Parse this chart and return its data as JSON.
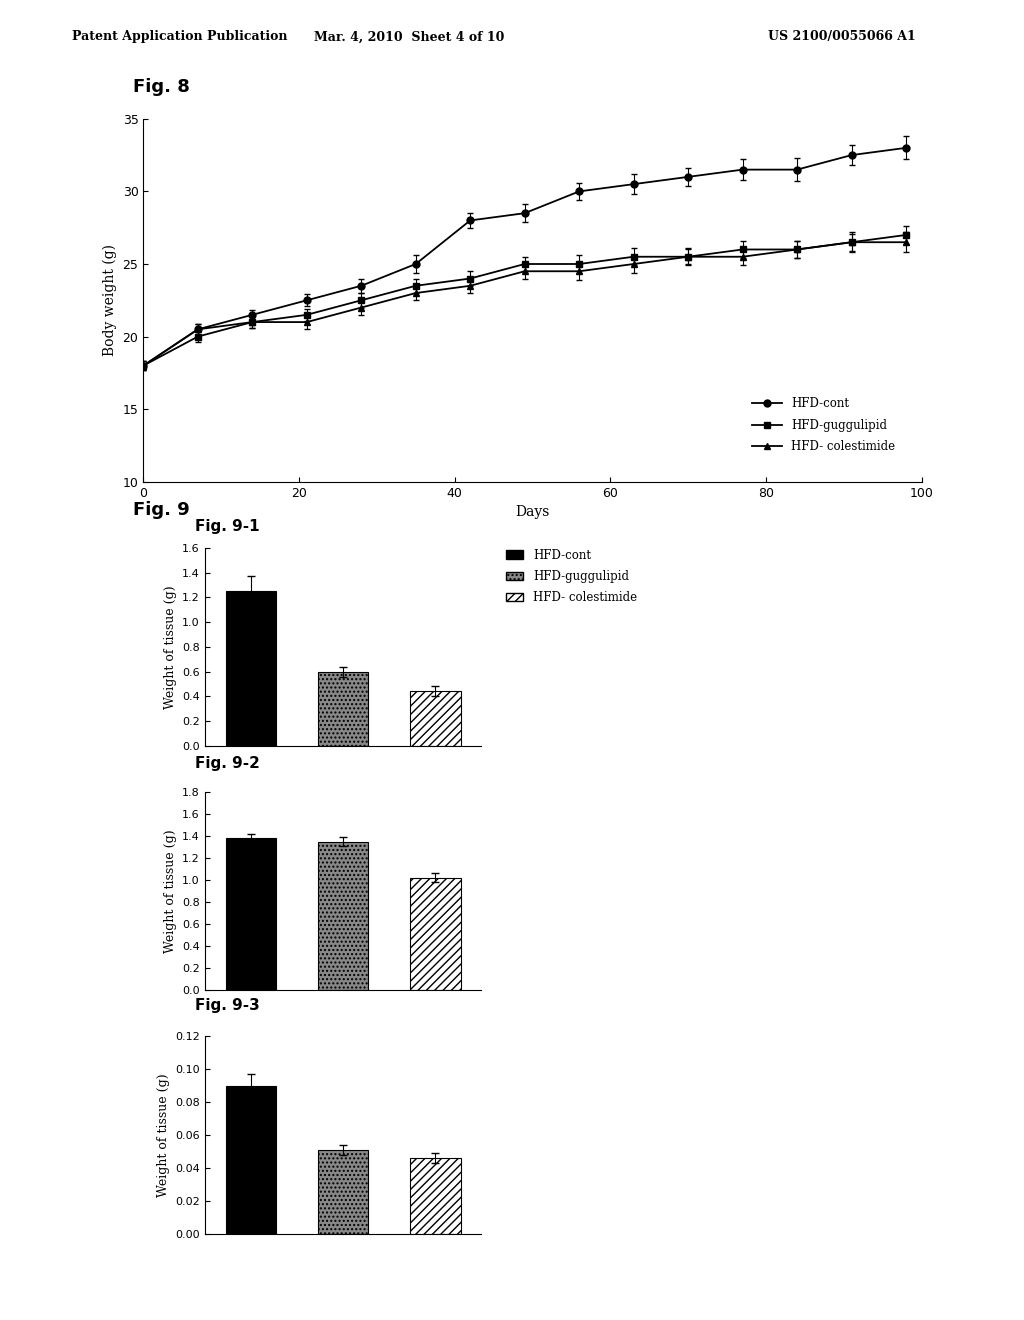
{
  "fig8": {
    "title": "Fig. 8",
    "xlabel": "Days",
    "ylabel": "Body weight (g)",
    "xlim": [
      0,
      100
    ],
    "ylim": [
      10,
      35
    ],
    "xticks": [
      0,
      20,
      40,
      60,
      80,
      100
    ],
    "yticks": [
      10,
      15,
      20,
      25,
      30,
      35
    ],
    "days": [
      0,
      7,
      14,
      21,
      28,
      35,
      42,
      49,
      56,
      63,
      70,
      77,
      84,
      91,
      98
    ],
    "hfd_cont": [
      18.0,
      20.5,
      21.5,
      22.5,
      23.5,
      25.0,
      28.0,
      28.5,
      30.0,
      30.5,
      31.0,
      31.5,
      31.5,
      32.5,
      33.0
    ],
    "hfd_cont_err": [
      0.3,
      0.4,
      0.3,
      0.4,
      0.5,
      0.6,
      0.5,
      0.6,
      0.6,
      0.7,
      0.6,
      0.7,
      0.8,
      0.7,
      0.8
    ],
    "hfd_gugg": [
      18.0,
      20.0,
      21.0,
      21.5,
      22.5,
      23.5,
      24.0,
      25.0,
      25.0,
      25.5,
      25.5,
      26.0,
      26.0,
      26.5,
      27.0
    ],
    "hfd_gugg_err": [
      0.3,
      0.4,
      0.4,
      0.4,
      0.5,
      0.5,
      0.5,
      0.5,
      0.6,
      0.6,
      0.5,
      0.6,
      0.6,
      0.6,
      0.6
    ],
    "hfd_cole": [
      18.0,
      20.5,
      21.0,
      21.0,
      22.0,
      23.0,
      23.5,
      24.5,
      24.5,
      25.0,
      25.5,
      25.5,
      26.0,
      26.5,
      26.5
    ],
    "hfd_cole_err": [
      0.3,
      0.4,
      0.4,
      0.5,
      0.5,
      0.5,
      0.5,
      0.5,
      0.6,
      0.6,
      0.6,
      0.6,
      0.6,
      0.7,
      0.7
    ],
    "legend_labels": [
      "HFD-cont",
      "HFD-guggulipid",
      "HFD- colestimide"
    ],
    "legend_markers": [
      "o",
      "s",
      "^"
    ]
  },
  "fig9_label": "Fig. 9",
  "fig91": {
    "title": "Fig. 9-1",
    "ylabel": "Weight of tissue (g)",
    "ylim": [
      0,
      1.6
    ],
    "yticks": [
      0,
      0.2,
      0.4,
      0.6,
      0.8,
      1.0,
      1.2,
      1.4,
      1.6
    ],
    "values": [
      1.25,
      0.6,
      0.44
    ],
    "errors": [
      0.12,
      0.04,
      0.04
    ],
    "legend_labels": [
      "HFD-cont",
      "HFD-guggulipid",
      "HFD- colestimide"
    ]
  },
  "fig92": {
    "title": "Fig. 9-2",
    "ylabel": "Weight of tissue (g)",
    "ylim": [
      0,
      1.8
    ],
    "yticks": [
      0,
      0.2,
      0.4,
      0.6,
      0.8,
      1.0,
      1.2,
      1.4,
      1.6,
      1.8
    ],
    "values": [
      1.38,
      1.35,
      1.02
    ],
    "errors": [
      0.04,
      0.04,
      0.04
    ],
    "legend_labels": [
      "HFD-cont",
      "HFD-guggulipid",
      "HFD- colestimide"
    ]
  },
  "fig93": {
    "title": "Fig. 9-3",
    "ylabel": "Weight of tissue (g)",
    "ylim": [
      0,
      0.12
    ],
    "yticks": [
      0,
      0.02,
      0.04,
      0.06,
      0.08,
      0.1,
      0.12
    ],
    "values": [
      0.09,
      0.051,
      0.046
    ],
    "errors": [
      0.007,
      0.003,
      0.003
    ],
    "legend_labels": [
      "HFD-cont",
      "HFD-guggulipid",
      "HFD- colestimide"
    ]
  },
  "header_left": "Patent Application Publication",
  "header_center": "Mar. 4, 2010  Sheet 4 of 10",
  "header_right": "US 2100/0055066 A1"
}
